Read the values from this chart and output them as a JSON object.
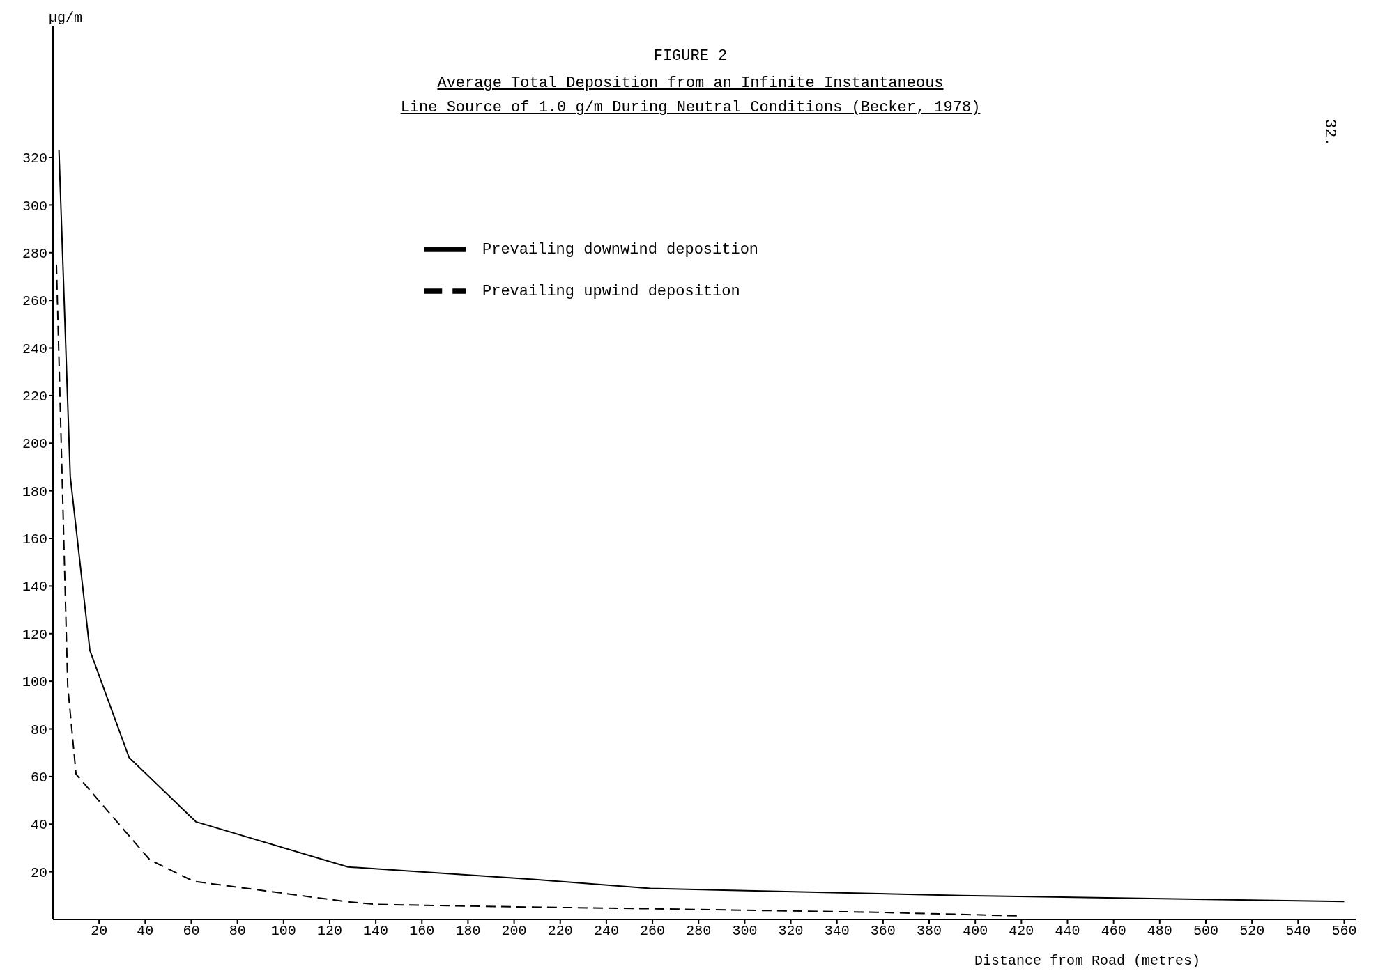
{
  "chart_data": {
    "type": "line",
    "title": "FIGURE 2",
    "subtitle": "Average Total Deposition from an Infinite Instantaneous\nLine Source of 1.0 g/m During Neutral Conditions (Becker, 1978)",
    "xlabel": "Distance from Road (metres)",
    "ylabel": "µg/m",
    "annotations": [
      "32."
    ],
    "xlim": [
      0,
      565
    ],
    "xticks": [
      20,
      40,
      60,
      80,
      100,
      120,
      140,
      160,
      180,
      200,
      220,
      240,
      260,
      280,
      300,
      320,
      340,
      360,
      380,
      400,
      420,
      440,
      460,
      480,
      500,
      520,
      540,
      560
    ],
    "ylim": [
      0,
      375
    ],
    "yticks": [
      20,
      40,
      60,
      80,
      100,
      120,
      140,
      160,
      180,
      200,
      220,
      240,
      260,
      280,
      300,
      320
    ],
    "grid": false,
    "legend": "top",
    "marker": "none",
    "series": [
      {
        "name": "Prevailing downwind deposition",
        "color": "#000000",
        "line_style": "solid",
        "x": [
          2.6,
          7.5,
          16,
          33,
          62,
          128,
          206,
          259,
          394,
          560
        ],
        "values": [
          323,
          186,
          113,
          68,
          41,
          22,
          17,
          13,
          10,
          7.5
        ]
      },
      {
        "name": "Prevailing upwind deposition",
        "color": "#000000",
        "line_style": "dashed",
        "x": [
          1.5,
          6.4,
          10,
          42,
          61,
          127,
          140,
          206,
          259,
          357,
          419
        ],
        "values": [
          275,
          98,
          61,
          25,
          16,
          7.5,
          6.3,
          5.2,
          4.5,
          3,
          1.5
        ]
      }
    ]
  }
}
